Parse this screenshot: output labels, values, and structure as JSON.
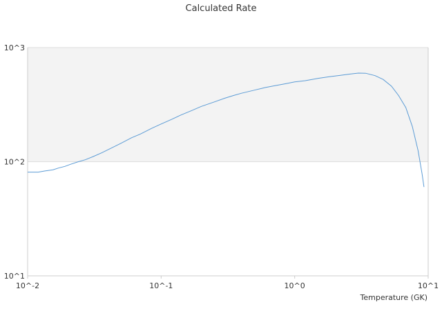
{
  "chart_data": {
    "type": "line",
    "title": "Calculated Rate",
    "xlabel": "Temperature (GK)",
    "ylabel": "",
    "x_scale": "log",
    "y_scale": "log",
    "xlim": [
      0.01,
      10
    ],
    "ylim": [
      10,
      1000
    ],
    "x_ticks": [
      {
        "value": 0.01,
        "label": "10^-2"
      },
      {
        "value": 0.1,
        "label": "10^-1"
      },
      {
        "value": 1,
        "label": "10^0"
      },
      {
        "value": 10,
        "label": "10^1"
      }
    ],
    "y_ticks": [
      {
        "value": 10,
        "label": "10^1"
      },
      {
        "value": 100,
        "label": "10^2"
      },
      {
        "value": 1000,
        "label": "10^3"
      }
    ],
    "plot_band": {
      "from": 100,
      "to": 1000,
      "color": "#f3f3f3"
    },
    "grid": false,
    "legend": "none",
    "colors": {
      "series": "#5b9bd5",
      "axis": "#cccccc",
      "band_line": "#dddddd"
    },
    "series": [
      {
        "values": [
          [
            0.01,
            81
          ],
          [
            0.012,
            81
          ],
          [
            0.0135,
            83
          ],
          [
            0.0155,
            85
          ],
          [
            0.017,
            88
          ],
          [
            0.019,
            91
          ],
          [
            0.021,
            95
          ],
          [
            0.024,
            100
          ],
          [
            0.027,
            104
          ],
          [
            0.031,
            111
          ],
          [
            0.036,
            120
          ],
          [
            0.042,
            131
          ],
          [
            0.05,
            145
          ],
          [
            0.06,
            162
          ],
          [
            0.07,
            175
          ],
          [
            0.085,
            196
          ],
          [
            0.1,
            214
          ],
          [
            0.12,
            235
          ],
          [
            0.14,
            256
          ],
          [
            0.17,
            281
          ],
          [
            0.2,
            305
          ],
          [
            0.25,
            334
          ],
          [
            0.3,
            360
          ],
          [
            0.35,
            381
          ],
          [
            0.4,
            398
          ],
          [
            0.5,
            424
          ],
          [
            0.6,
            446
          ],
          [
            0.7,
            462
          ],
          [
            0.85,
            482
          ],
          [
            1.0,
            500
          ],
          [
            1.2,
            513
          ],
          [
            1.5,
            538
          ],
          [
            1.8,
            554
          ],
          [
            2.2,
            572
          ],
          [
            2.6,
            586
          ],
          [
            3.0,
            598
          ],
          [
            3.4,
            596
          ],
          [
            4.0,
            568
          ],
          [
            4.6,
            526
          ],
          [
            5.3,
            460
          ],
          [
            6.0,
            380
          ],
          [
            6.8,
            298
          ],
          [
            7.6,
            204
          ],
          [
            8.4,
            125
          ],
          [
            9.0,
            78
          ],
          [
            9.3,
            60
          ]
        ]
      }
    ]
  }
}
